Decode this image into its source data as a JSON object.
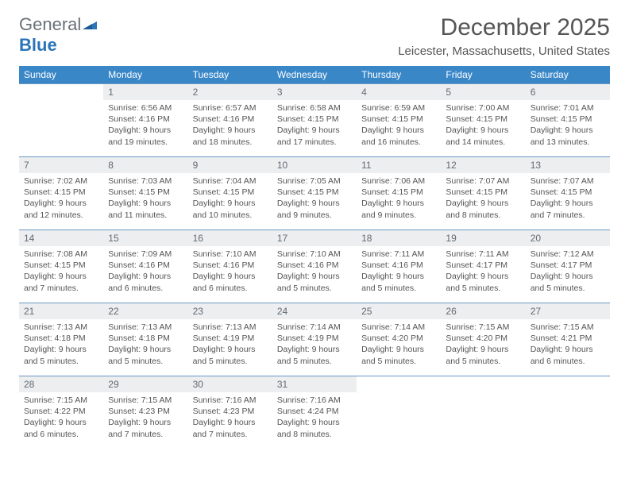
{
  "logo": {
    "line1": "General",
    "line2": "Blue"
  },
  "title": "December 2025",
  "location": "Leicester, Massachusetts, United States",
  "colors": {
    "header_bg": "#3a87c8",
    "header_text": "#ffffff",
    "daynum_bg": "#eceef0",
    "border": "#6a97c2",
    "text": "#555555"
  },
  "weekdays": [
    "Sunday",
    "Monday",
    "Tuesday",
    "Wednesday",
    "Thursday",
    "Friday",
    "Saturday"
  ],
  "grid": [
    [
      null,
      {
        "n": 1,
        "sr": "6:56 AM",
        "ss": "4:16 PM",
        "dh": 9,
        "dm": 19
      },
      {
        "n": 2,
        "sr": "6:57 AM",
        "ss": "4:16 PM",
        "dh": 9,
        "dm": 18
      },
      {
        "n": 3,
        "sr": "6:58 AM",
        "ss": "4:15 PM",
        "dh": 9,
        "dm": 17
      },
      {
        "n": 4,
        "sr": "6:59 AM",
        "ss": "4:15 PM",
        "dh": 9,
        "dm": 16
      },
      {
        "n": 5,
        "sr": "7:00 AM",
        "ss": "4:15 PM",
        "dh": 9,
        "dm": 14
      },
      {
        "n": 6,
        "sr": "7:01 AM",
        "ss": "4:15 PM",
        "dh": 9,
        "dm": 13
      }
    ],
    [
      {
        "n": 7,
        "sr": "7:02 AM",
        "ss": "4:15 PM",
        "dh": 9,
        "dm": 12
      },
      {
        "n": 8,
        "sr": "7:03 AM",
        "ss": "4:15 PM",
        "dh": 9,
        "dm": 11
      },
      {
        "n": 9,
        "sr": "7:04 AM",
        "ss": "4:15 PM",
        "dh": 9,
        "dm": 10
      },
      {
        "n": 10,
        "sr": "7:05 AM",
        "ss": "4:15 PM",
        "dh": 9,
        "dm": 9
      },
      {
        "n": 11,
        "sr": "7:06 AM",
        "ss": "4:15 PM",
        "dh": 9,
        "dm": 9
      },
      {
        "n": 12,
        "sr": "7:07 AM",
        "ss": "4:15 PM",
        "dh": 9,
        "dm": 8
      },
      {
        "n": 13,
        "sr": "7:07 AM",
        "ss": "4:15 PM",
        "dh": 9,
        "dm": 7
      }
    ],
    [
      {
        "n": 14,
        "sr": "7:08 AM",
        "ss": "4:15 PM",
        "dh": 9,
        "dm": 7
      },
      {
        "n": 15,
        "sr": "7:09 AM",
        "ss": "4:16 PM",
        "dh": 9,
        "dm": 6
      },
      {
        "n": 16,
        "sr": "7:10 AM",
        "ss": "4:16 PM",
        "dh": 9,
        "dm": 6
      },
      {
        "n": 17,
        "sr": "7:10 AM",
        "ss": "4:16 PM",
        "dh": 9,
        "dm": 5
      },
      {
        "n": 18,
        "sr": "7:11 AM",
        "ss": "4:16 PM",
        "dh": 9,
        "dm": 5
      },
      {
        "n": 19,
        "sr": "7:11 AM",
        "ss": "4:17 PM",
        "dh": 9,
        "dm": 5
      },
      {
        "n": 20,
        "sr": "7:12 AM",
        "ss": "4:17 PM",
        "dh": 9,
        "dm": 5
      }
    ],
    [
      {
        "n": 21,
        "sr": "7:13 AM",
        "ss": "4:18 PM",
        "dh": 9,
        "dm": 5
      },
      {
        "n": 22,
        "sr": "7:13 AM",
        "ss": "4:18 PM",
        "dh": 9,
        "dm": 5
      },
      {
        "n": 23,
        "sr": "7:13 AM",
        "ss": "4:19 PM",
        "dh": 9,
        "dm": 5
      },
      {
        "n": 24,
        "sr": "7:14 AM",
        "ss": "4:19 PM",
        "dh": 9,
        "dm": 5
      },
      {
        "n": 25,
        "sr": "7:14 AM",
        "ss": "4:20 PM",
        "dh": 9,
        "dm": 5
      },
      {
        "n": 26,
        "sr": "7:15 AM",
        "ss": "4:20 PM",
        "dh": 9,
        "dm": 5
      },
      {
        "n": 27,
        "sr": "7:15 AM",
        "ss": "4:21 PM",
        "dh": 9,
        "dm": 6
      }
    ],
    [
      {
        "n": 28,
        "sr": "7:15 AM",
        "ss": "4:22 PM",
        "dh": 9,
        "dm": 6
      },
      {
        "n": 29,
        "sr": "7:15 AM",
        "ss": "4:23 PM",
        "dh": 9,
        "dm": 7
      },
      {
        "n": 30,
        "sr": "7:16 AM",
        "ss": "4:23 PM",
        "dh": 9,
        "dm": 7
      },
      {
        "n": 31,
        "sr": "7:16 AM",
        "ss": "4:24 PM",
        "dh": 9,
        "dm": 8
      },
      null,
      null,
      null
    ]
  ],
  "labels": {
    "sunrise": "Sunrise:",
    "sunset": "Sunset:",
    "daylight": "Daylight:",
    "hours": "hours",
    "and": "and",
    "minutes": "minutes."
  }
}
